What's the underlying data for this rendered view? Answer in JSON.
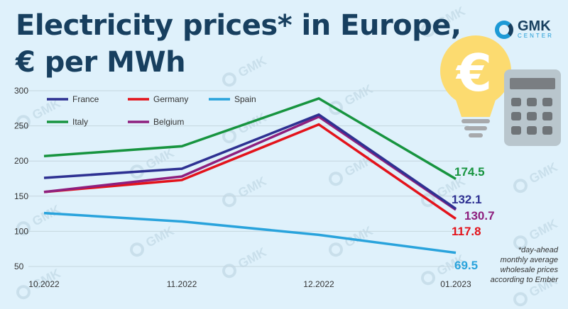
{
  "header": {
    "title_line1": "Electricity prices* in Europe,",
    "title_line2": "€ per MWh",
    "logo_name": "GMK",
    "logo_sub": "CENTER"
  },
  "watermark": "GMK",
  "footnote": [
    "*day-ahead",
    "monthly average",
    "wholesale prices",
    "according to Ember"
  ],
  "chart_data": {
    "type": "line",
    "title": "Electricity prices* in Europe, € per MWh",
    "xlabel": "",
    "ylabel": "",
    "x": [
      "10.2022",
      "11.2022",
      "12.2022",
      "01.2023"
    ],
    "yticks": [
      50,
      100,
      150,
      200,
      250,
      300
    ],
    "ylim": [
      40,
      300
    ],
    "grid": true,
    "legend_position": "top-left",
    "series": [
      {
        "name": "France",
        "color": "#2e3192",
        "values": [
          176,
          189,
          266,
          132.1
        ],
        "end_label": "132.1"
      },
      {
        "name": "Germany",
        "color": "#e3131b",
        "values": [
          156,
          173,
          252,
          117.8
        ],
        "end_label": "117.8"
      },
      {
        "name": "Spain",
        "color": "#29a3dc",
        "values": [
          126,
          114,
          95,
          69.5
        ],
        "end_label": "69.5"
      },
      {
        "name": "Italy",
        "color": "#17943f",
        "values": [
          207,
          221,
          289,
          174.5
        ],
        "end_label": "174.5"
      },
      {
        "name": "Belgium",
        "color": "#8e1f7e",
        "values": [
          156,
          178,
          263,
          130.7
        ],
        "end_label": "130.7"
      }
    ]
  }
}
